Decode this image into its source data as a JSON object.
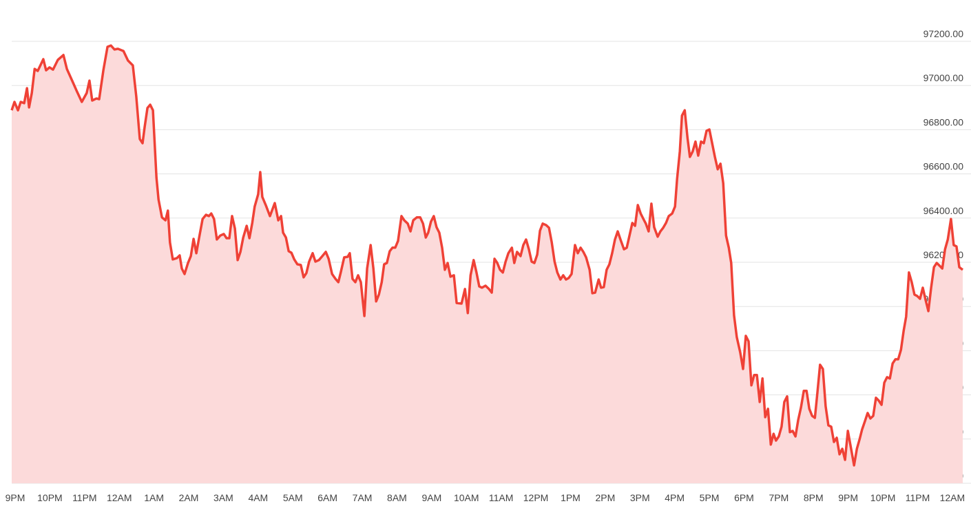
{
  "chart_data": {
    "type": "area",
    "grid": true,
    "xlim": [
      -0.1,
      27.3
    ],
    "xticks": [
      {
        "value": 0,
        "label": "9PM"
      },
      {
        "value": 1,
        "label": "10PM"
      },
      {
        "value": 2,
        "label": "11PM"
      },
      {
        "value": 3,
        "label": "12AM"
      },
      {
        "value": 4,
        "label": "1AM"
      },
      {
        "value": 5,
        "label": "2AM"
      },
      {
        "value": 6,
        "label": "3AM"
      },
      {
        "value": 7,
        "label": "4AM"
      },
      {
        "value": 8,
        "label": "5AM"
      },
      {
        "value": 9,
        "label": "6AM"
      },
      {
        "value": 10,
        "label": "7AM"
      },
      {
        "value": 11,
        "label": "8AM"
      },
      {
        "value": 12,
        "label": "9AM"
      },
      {
        "value": 13,
        "label": "10AM"
      },
      {
        "value": 14,
        "label": "11AM"
      },
      {
        "value": 15,
        "label": "12PM"
      },
      {
        "value": 16,
        "label": "1PM"
      },
      {
        "value": 17,
        "label": "2PM"
      },
      {
        "value": 18,
        "label": "3PM"
      },
      {
        "value": 19,
        "label": "4PM"
      },
      {
        "value": 20,
        "label": "5PM"
      },
      {
        "value": 21,
        "label": "6PM"
      },
      {
        "value": 22,
        "label": "7PM"
      },
      {
        "value": 23,
        "label": "8PM"
      },
      {
        "value": 24,
        "label": "9PM"
      },
      {
        "value": 25,
        "label": "10PM"
      },
      {
        "value": 26,
        "label": "11PM"
      },
      {
        "value": 27,
        "label": "12AM"
      }
    ],
    "ylim": [
      95200,
      97200
    ],
    "yticks": [
      {
        "value": 95200,
        "label": "95200.00"
      },
      {
        "value": 95400,
        "label": "95400.00"
      },
      {
        "value": 95600,
        "label": "95600.00"
      },
      {
        "value": 95800,
        "label": "95800.00"
      },
      {
        "value": 96000,
        "label": "96000.00"
      },
      {
        "value": 96200,
        "label": "96200.00"
      },
      {
        "value": 96400,
        "label": "96400.00"
      },
      {
        "value": 96600,
        "label": "96600.00"
      },
      {
        "value": 96800,
        "label": "96800.00"
      },
      {
        "value": 97000,
        "label": "97000.00"
      },
      {
        "value": 97200,
        "label": "97200.00"
      }
    ],
    "x": [
      -0.1,
      -0.02,
      0.08,
      0.16,
      0.26,
      0.34,
      0.4,
      0.48,
      0.56,
      0.65,
      0.81,
      0.89,
      0.99,
      1.09,
      1.23,
      1.39,
      1.49,
      1.65,
      1.77,
      1.92,
      2.06,
      2.14,
      2.22,
      2.34,
      2.42,
      2.54,
      2.66,
      2.76,
      2.86,
      2.96,
      3.12,
      3.25,
      3.39,
      3.49,
      3.59,
      3.67,
      3.73,
      3.81,
      3.89,
      3.97,
      4.07,
      4.13,
      4.23,
      4.33,
      4.4,
      4.46,
      4.54,
      4.66,
      4.74,
      4.8,
      4.88,
      4.98,
      5.06,
      5.14,
      5.22,
      5.3,
      5.4,
      5.5,
      5.58,
      5.65,
      5.73,
      5.81,
      5.91,
      6.01,
      6.09,
      6.17,
      6.25,
      6.33,
      6.41,
      6.49,
      6.57,
      6.67,
      6.75,
      6.83,
      6.9,
      7.0,
      7.06,
      7.12,
      7.22,
      7.34,
      7.48,
      7.58,
      7.66,
      7.72,
      7.8,
      7.88,
      7.96,
      8.04,
      8.13,
      8.23,
      8.31,
      8.39,
      8.47,
      8.57,
      8.65,
      8.75,
      8.85,
      8.95,
      9.03,
      9.13,
      9.23,
      9.31,
      9.38,
      9.48,
      9.58,
      9.64,
      9.72,
      9.8,
      9.88,
      9.96,
      10.06,
      10.14,
      10.24,
      10.32,
      10.4,
      10.48,
      10.56,
      10.63,
      10.71,
      10.79,
      10.87,
      10.95,
      11.03,
      11.13,
      11.21,
      11.31,
      11.39,
      11.47,
      11.57,
      11.67,
      11.75,
      11.83,
      11.9,
      11.98,
      12.06,
      12.14,
      12.22,
      12.3,
      12.38,
      12.46,
      12.54,
      12.64,
      12.72,
      12.86,
      12.96,
      13.04,
      13.12,
      13.21,
      13.29,
      13.37,
      13.45,
      13.55,
      13.65,
      13.73,
      13.81,
      13.89,
      13.97,
      14.05,
      14.13,
      14.21,
      14.31,
      14.38,
      14.46,
      14.56,
      14.64,
      14.72,
      14.8,
      14.88,
      14.96,
      15.04,
      15.12,
      15.2,
      15.3,
      15.38,
      15.46,
      15.54,
      15.62,
      15.71,
      15.79,
      15.87,
      15.95,
      16.03,
      16.13,
      16.21,
      16.29,
      16.37,
      16.45,
      16.55,
      16.63,
      16.71,
      16.81,
      16.88,
      16.96,
      17.04,
      17.12,
      17.2,
      17.28,
      17.36,
      17.44,
      17.54,
      17.62,
      17.7,
      17.78,
      17.86,
      17.94,
      18.02,
      18.1,
      18.17,
      18.25,
      18.33,
      18.41,
      18.51,
      18.59,
      18.67,
      18.75,
      18.83,
      18.93,
      19.01,
      19.07,
      19.15,
      19.21,
      19.29,
      19.37,
      19.44,
      19.52,
      19.6,
      19.68,
      19.76,
      19.84,
      19.92,
      20.0,
      20.08,
      20.16,
      20.24,
      20.32,
      20.4,
      20.48,
      20.56,
      20.63,
      20.71,
      20.79,
      20.89,
      20.97,
      21.05,
      21.13,
      21.21,
      21.29,
      21.37,
      21.45,
      21.53,
      21.61,
      21.69,
      21.77,
      21.85,
      21.92,
      22.0,
      22.08,
      22.16,
      22.24,
      22.32,
      22.4,
      22.48,
      22.56,
      22.64,
      22.72,
      22.8,
      22.88,
      22.96,
      23.04,
      23.11,
      23.19,
      23.27,
      23.35,
      23.43,
      23.51,
      23.59,
      23.67,
      23.75,
      23.83,
      23.91,
      23.99,
      24.07,
      24.17,
      24.25,
      24.33,
      24.4,
      24.48,
      24.56,
      24.64,
      24.72,
      24.8,
      24.88,
      24.96,
      25.04,
      25.12,
      25.2,
      25.28,
      25.36,
      25.44,
      25.52,
      25.6,
      25.67,
      25.75,
      25.83,
      25.91,
      25.99,
      26.07,
      26.15,
      26.23,
      26.31,
      26.39,
      26.47,
      26.55,
      26.63,
      26.71,
      26.79,
      26.87,
      26.96,
      27.04,
      27.12,
      27.2,
      27.3
    ],
    "series": [
      {
        "color": "#ef4136",
        "fill": "#fcdada",
        "values": [
          96888,
          96926,
          96888,
          96926,
          96920,
          96988,
          96901,
          96966,
          97075,
          97066,
          97119,
          97069,
          97082,
          97072,
          97116,
          97138,
          97075,
          97019,
          96976,
          96926,
          96966,
          97022,
          96932,
          96941,
          96938,
          97069,
          97175,
          97181,
          97163,
          97166,
          97156,
          97113,
          97091,
          96950,
          96758,
          96739,
          96811,
          96898,
          96913,
          96888,
          96583,
          96484,
          96403,
          96390,
          96434,
          96290,
          96213,
          96219,
          96231,
          96172,
          96147,
          96197,
          96228,
          96306,
          96241,
          96312,
          96396,
          96415,
          96409,
          96421,
          96396,
          96303,
          96321,
          96328,
          96309,
          96309,
          96409,
          96353,
          96210,
          96247,
          96312,
          96365,
          96309,
          96378,
          96452,
          96508,
          96608,
          96496,
          96459,
          96409,
          96468,
          96390,
          96409,
          96334,
          96312,
          96250,
          96243,
          96213,
          96191,
          96188,
          96132,
          96151,
          96203,
          96241,
          96203,
          96210,
          96228,
          96247,
          96216,
          96147,
          96125,
          96110,
          96154,
          96222,
          96225,
          96241,
          96125,
          96110,
          96141,
          96110,
          95957,
          96172,
          96278,
          96172,
          96023,
          96054,
          96110,
          96191,
          96197,
          96250,
          96266,
          96266,
          96297,
          96409,
          96390,
          96375,
          96340,
          96390,
          96403,
          96403,
          96375,
          96312,
          96334,
          96384,
          96409,
          96359,
          96334,
          96266,
          96166,
          96197,
          96135,
          96141,
          96016,
          96013,
          96079,
          95970,
          96141,
          96210,
          96154,
          96091,
          96085,
          96094,
          96079,
          96063,
          96216,
          96197,
          96166,
          96154,
          96203,
          96241,
          96266,
          96197,
          96247,
          96228,
          96278,
          96303,
          96259,
          96203,
          96197,
          96235,
          96343,
          96375,
          96368,
          96356,
          96290,
          96203,
          96154,
          96122,
          96141,
          96122,
          96129,
          96147,
          96278,
          96241,
          96266,
          96247,
          96222,
          96166,
          96060,
          96063,
          96122,
          96085,
          96088,
          96166,
          96191,
          96241,
          96303,
          96340,
          96303,
          96259,
          96266,
          96321,
          96378,
          96365,
          96459,
          96421,
          96396,
          96375,
          96340,
          96465,
          96359,
          96316,
          96340,
          96356,
          96378,
          96409,
          96421,
          96452,
          96577,
          96702,
          96864,
          96888,
          96764,
          96677,
          96702,
          96746,
          96683,
          96746,
          96739,
          96795,
          96801,
          96739,
          96677,
          96621,
          96646,
          96558,
          96321,
          96266,
          96197,
          95960,
          95861,
          95792,
          95717,
          95867,
          95842,
          95643,
          95690,
          95690,
          95568,
          95674,
          95499,
          95537,
          95375,
          95424,
          95393,
          95412,
          95456,
          95568,
          95593,
          95431,
          95437,
          95412,
          95487,
          95543,
          95618,
          95618,
          95537,
          95505,
          95496,
          95605,
          95736,
          95717,
          95549,
          95462,
          95456,
          95387,
          95406,
          95331,
          95356,
          95306,
          95437,
          95368,
          95281,
          95356,
          95400,
          95443,
          95480,
          95518,
          95493,
          95505,
          95587,
          95574,
          95555,
          95655,
          95680,
          95674,
          95742,
          95761,
          95761,
          95804,
          95892,
          95954,
          96154,
          96110,
          96054,
          96047,
          96035,
          96085,
          96029,
          95979,
          96085,
          96178,
          96197,
          96185,
          96172,
          96259,
          96303,
          96396,
          96278,
          96272,
          96178,
          96166
        ]
      }
    ]
  }
}
